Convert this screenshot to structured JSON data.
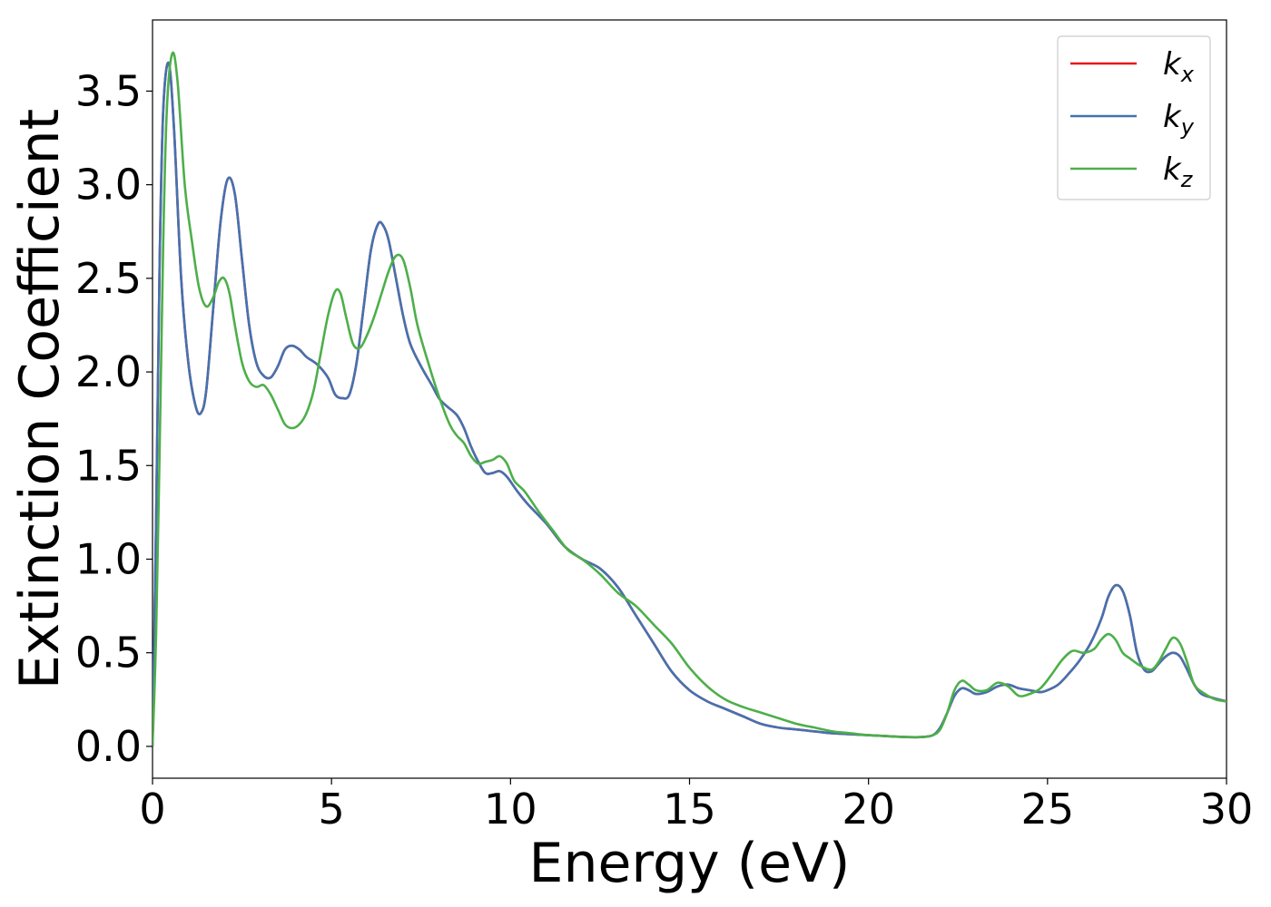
{
  "chart_data": {
    "type": "line",
    "xlabel": "Energy (eV)",
    "ylabel": "Extinction Coefficient",
    "xlim": [
      0,
      30
    ],
    "ylim": [
      -0.17,
      3.88
    ],
    "xticks": [
      0,
      5,
      10,
      15,
      20,
      25,
      30
    ],
    "xtick_labels": [
      "0",
      "5",
      "10",
      "15",
      "20",
      "25",
      "30"
    ],
    "yticks": [
      0.0,
      0.5,
      1.0,
      1.5,
      2.0,
      2.5,
      3.0,
      3.5
    ],
    "ytick_labels": [
      "0.0",
      "0.5",
      "1.0",
      "1.5",
      "2.0",
      "2.5",
      "3.0",
      "3.5"
    ],
    "grid": false,
    "legend_position": "top-right",
    "series": [
      {
        "name": "k_x",
        "label_base": "k",
        "label_sub": "x",
        "color": "#e41a1c",
        "x": [
          0,
          0.1,
          0.2,
          0.3,
          0.45,
          0.6,
          0.8,
          1.0,
          1.2,
          1.35,
          1.5,
          1.7,
          1.9,
          2.1,
          2.3,
          2.5,
          2.7,
          2.9,
          3.1,
          3.3,
          3.5,
          3.7,
          3.9,
          4.1,
          4.3,
          4.6,
          4.9,
          5.1,
          5.3,
          5.5,
          5.7,
          5.9,
          6.1,
          6.3,
          6.45,
          6.6,
          6.8,
          7.0,
          7.2,
          7.5,
          7.8,
          8.0,
          8.2,
          8.5,
          8.7,
          8.9,
          9.1,
          9.3,
          9.5,
          9.7,
          9.9,
          10.2,
          10.5,
          11.0,
          11.5,
          12.0,
          12.5,
          13.0,
          13.5,
          14.0,
          14.5,
          15.0,
          15.5,
          16.0,
          16.5,
          17.0,
          17.5,
          18.0,
          18.5,
          19.0,
          19.5,
          20.0,
          20.5,
          21.0,
          21.5,
          21.8,
          22.0,
          22.2,
          22.4,
          22.6,
          22.8,
          23.0,
          23.3,
          23.6,
          23.9,
          24.2,
          24.5,
          24.8,
          25.0,
          25.3,
          25.6,
          25.9,
          26.2,
          26.5,
          26.7,
          26.9,
          27.1,
          27.3,
          27.5,
          27.7,
          27.9,
          28.1,
          28.3,
          28.5,
          28.7,
          28.9,
          29.1,
          29.3,
          29.6,
          30.0
        ],
        "y": [
          0.0,
          1.2,
          2.6,
          3.4,
          3.65,
          3.3,
          2.5,
          2.05,
          1.82,
          1.78,
          1.9,
          2.35,
          2.8,
          3.03,
          2.95,
          2.6,
          2.25,
          2.05,
          1.98,
          1.97,
          2.03,
          2.12,
          2.14,
          2.12,
          2.08,
          2.04,
          1.97,
          1.88,
          1.86,
          1.88,
          2.05,
          2.35,
          2.65,
          2.79,
          2.78,
          2.7,
          2.5,
          2.3,
          2.15,
          2.03,
          1.93,
          1.86,
          1.82,
          1.77,
          1.7,
          1.6,
          1.52,
          1.46,
          1.46,
          1.47,
          1.44,
          1.36,
          1.29,
          1.19,
          1.07,
          1.0,
          0.95,
          0.85,
          0.7,
          0.55,
          0.4,
          0.3,
          0.24,
          0.2,
          0.16,
          0.12,
          0.1,
          0.09,
          0.08,
          0.07,
          0.065,
          0.06,
          0.055,
          0.05,
          0.05,
          0.06,
          0.1,
          0.18,
          0.27,
          0.31,
          0.3,
          0.28,
          0.29,
          0.32,
          0.33,
          0.31,
          0.3,
          0.29,
          0.3,
          0.33,
          0.39,
          0.46,
          0.55,
          0.68,
          0.8,
          0.86,
          0.83,
          0.7,
          0.5,
          0.41,
          0.4,
          0.44,
          0.48,
          0.5,
          0.48,
          0.41,
          0.33,
          0.28,
          0.26,
          0.24
        ]
      },
      {
        "name": "k_y",
        "label_base": "k",
        "label_sub": "y",
        "color": "#4472b0",
        "x": [
          0,
          0.1,
          0.2,
          0.3,
          0.45,
          0.6,
          0.8,
          1.0,
          1.2,
          1.35,
          1.5,
          1.7,
          1.9,
          2.1,
          2.3,
          2.5,
          2.7,
          2.9,
          3.1,
          3.3,
          3.5,
          3.7,
          3.9,
          4.1,
          4.3,
          4.6,
          4.9,
          5.1,
          5.3,
          5.5,
          5.7,
          5.9,
          6.1,
          6.3,
          6.45,
          6.6,
          6.8,
          7.0,
          7.2,
          7.5,
          7.8,
          8.0,
          8.2,
          8.5,
          8.7,
          8.9,
          9.1,
          9.3,
          9.5,
          9.7,
          9.9,
          10.2,
          10.5,
          11.0,
          11.5,
          12.0,
          12.5,
          13.0,
          13.5,
          14.0,
          14.5,
          15.0,
          15.5,
          16.0,
          16.5,
          17.0,
          17.5,
          18.0,
          18.5,
          19.0,
          19.5,
          20.0,
          20.5,
          21.0,
          21.5,
          21.8,
          22.0,
          22.2,
          22.4,
          22.6,
          22.8,
          23.0,
          23.3,
          23.6,
          23.9,
          24.2,
          24.5,
          24.8,
          25.0,
          25.3,
          25.6,
          25.9,
          26.2,
          26.5,
          26.7,
          26.9,
          27.1,
          27.3,
          27.5,
          27.7,
          27.9,
          28.1,
          28.3,
          28.5,
          28.7,
          28.9,
          29.1,
          29.3,
          29.6,
          30.0
        ],
        "y": [
          0.0,
          1.2,
          2.6,
          3.4,
          3.65,
          3.3,
          2.5,
          2.05,
          1.82,
          1.78,
          1.9,
          2.35,
          2.8,
          3.03,
          2.95,
          2.6,
          2.25,
          2.05,
          1.98,
          1.97,
          2.03,
          2.12,
          2.14,
          2.12,
          2.08,
          2.04,
          1.97,
          1.88,
          1.86,
          1.88,
          2.05,
          2.35,
          2.65,
          2.79,
          2.78,
          2.7,
          2.5,
          2.3,
          2.15,
          2.03,
          1.93,
          1.86,
          1.82,
          1.77,
          1.7,
          1.6,
          1.52,
          1.46,
          1.46,
          1.47,
          1.44,
          1.36,
          1.29,
          1.19,
          1.07,
          1.0,
          0.95,
          0.85,
          0.7,
          0.55,
          0.4,
          0.3,
          0.24,
          0.2,
          0.16,
          0.12,
          0.1,
          0.09,
          0.08,
          0.07,
          0.065,
          0.06,
          0.055,
          0.05,
          0.05,
          0.06,
          0.1,
          0.18,
          0.27,
          0.31,
          0.3,
          0.28,
          0.29,
          0.32,
          0.33,
          0.31,
          0.3,
          0.29,
          0.3,
          0.33,
          0.39,
          0.46,
          0.55,
          0.68,
          0.8,
          0.86,
          0.83,
          0.7,
          0.5,
          0.41,
          0.4,
          0.44,
          0.48,
          0.5,
          0.48,
          0.41,
          0.33,
          0.28,
          0.26,
          0.24
        ]
      },
      {
        "name": "k_z",
        "label_base": "k",
        "label_sub": "z",
        "color": "#4daf4a",
        "x": [
          0,
          0.1,
          0.2,
          0.3,
          0.4,
          0.55,
          0.7,
          0.9,
          1.1,
          1.3,
          1.5,
          1.7,
          1.85,
          2.0,
          2.15,
          2.3,
          2.5,
          2.7,
          2.9,
          3.1,
          3.3,
          3.5,
          3.7,
          3.9,
          4.1,
          4.3,
          4.5,
          4.7,
          4.9,
          5.1,
          5.25,
          5.4,
          5.6,
          5.8,
          6.0,
          6.2,
          6.4,
          6.6,
          6.8,
          7.0,
          7.2,
          7.4,
          7.7,
          8.0,
          8.3,
          8.5,
          8.7,
          8.9,
          9.1,
          9.3,
          9.5,
          9.7,
          9.9,
          10.1,
          10.4,
          10.8,
          11.2,
          11.6,
          12.0,
          12.5,
          13.0,
          13.5,
          14.0,
          14.5,
          15.0,
          15.5,
          16.0,
          16.5,
          17.0,
          17.5,
          18.0,
          18.5,
          19.0,
          19.5,
          20.0,
          20.5,
          21.0,
          21.5,
          21.8,
          22.0,
          22.2,
          22.4,
          22.6,
          22.8,
          23.0,
          23.3,
          23.6,
          23.9,
          24.2,
          24.5,
          24.8,
          25.1,
          25.4,
          25.7,
          26.0,
          26.3,
          26.5,
          26.7,
          26.9,
          27.1,
          27.3,
          27.6,
          27.9,
          28.1,
          28.3,
          28.5,
          28.7,
          28.9,
          29.1,
          29.4,
          29.7,
          30.0
        ],
        "y": [
          0.0,
          0.6,
          1.6,
          2.7,
          3.4,
          3.7,
          3.55,
          3.0,
          2.7,
          2.45,
          2.35,
          2.4,
          2.48,
          2.5,
          2.42,
          2.25,
          2.05,
          1.95,
          1.92,
          1.93,
          1.88,
          1.8,
          1.72,
          1.7,
          1.72,
          1.78,
          1.9,
          2.1,
          2.3,
          2.43,
          2.42,
          2.3,
          2.15,
          2.13,
          2.2,
          2.3,
          2.42,
          2.54,
          2.62,
          2.6,
          2.45,
          2.25,
          2.05,
          1.87,
          1.72,
          1.66,
          1.62,
          1.55,
          1.51,
          1.52,
          1.53,
          1.55,
          1.51,
          1.42,
          1.36,
          1.25,
          1.15,
          1.05,
          1.0,
          0.92,
          0.82,
          0.75,
          0.65,
          0.55,
          0.42,
          0.32,
          0.25,
          0.21,
          0.18,
          0.15,
          0.12,
          0.1,
          0.08,
          0.07,
          0.06,
          0.055,
          0.05,
          0.05,
          0.06,
          0.09,
          0.18,
          0.3,
          0.35,
          0.33,
          0.3,
          0.3,
          0.34,
          0.32,
          0.27,
          0.28,
          0.31,
          0.38,
          0.46,
          0.51,
          0.5,
          0.52,
          0.57,
          0.6,
          0.57,
          0.5,
          0.47,
          0.43,
          0.41,
          0.45,
          0.52,
          0.58,
          0.55,
          0.45,
          0.33,
          0.28,
          0.25,
          0.24
        ]
      }
    ]
  }
}
